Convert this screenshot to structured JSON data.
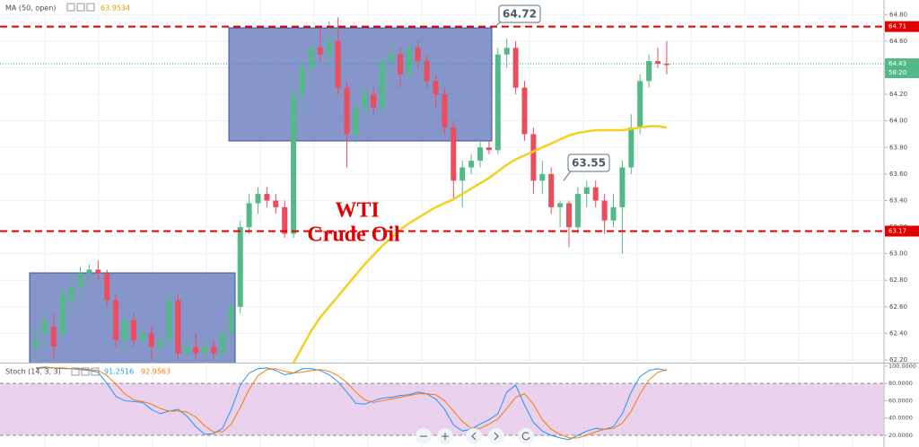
{
  "chart_data": [
    {
      "type": "candlestick",
      "title": "MA (50, open)",
      "ma": {
        "readout": 63.9534,
        "color": "#f5d020",
        "values": [
          null,
          null,
          null,
          null,
          null,
          null,
          null,
          null,
          null,
          null,
          null,
          null,
          null,
          null,
          null,
          null,
          null,
          null,
          null,
          null,
          null,
          null,
          null,
          null,
          null,
          null,
          null,
          null,
          null,
          62.18,
          62.3,
          62.42,
          62.52,
          62.6,
          62.68,
          62.76,
          62.84,
          62.92,
          62.99,
          63.06,
          63.12,
          63.18,
          63.23,
          63.27,
          63.31,
          63.35,
          63.38,
          63.41,
          63.45,
          63.49,
          63.53,
          63.57,
          63.62,
          63.67,
          63.71,
          63.74,
          63.77,
          63.8,
          63.83,
          63.86,
          63.89,
          63.91,
          63.92,
          63.93,
          63.93,
          63.93,
          63.93,
          63.94,
          63.95,
          63.96,
          63.96,
          63.95
        ]
      },
      "up_color": "#53b987",
      "down_color": "#eb4d5c",
      "ohlc": [
        [
          62.3,
          62.45,
          62.2,
          62.35
        ],
        [
          62.4,
          62.55,
          62.3,
          62.5
        ],
        [
          62.45,
          62.55,
          62.2,
          62.3
        ],
        [
          62.4,
          62.75,
          62.35,
          62.7
        ],
        [
          62.65,
          62.85,
          62.5,
          62.75
        ],
        [
          62.75,
          62.9,
          62.6,
          62.85
        ],
        [
          62.85,
          62.92,
          62.75,
          62.88
        ],
        [
          62.88,
          62.95,
          62.8,
          62.85
        ],
        [
          62.85,
          62.88,
          62.6,
          62.65
        ],
        [
          62.65,
          62.7,
          62.3,
          62.35
        ],
        [
          62.35,
          62.55,
          62.25,
          62.5
        ],
        [
          62.5,
          62.55,
          62.3,
          62.35
        ],
        [
          62.35,
          62.45,
          62.3,
          62.4
        ],
        [
          62.4,
          62.45,
          62.2,
          62.3
        ],
        [
          62.3,
          62.4,
          62.2,
          62.35
        ],
        [
          62.35,
          62.7,
          62.3,
          62.65
        ],
        [
          62.65,
          62.7,
          62.2,
          62.25
        ],
        [
          62.25,
          62.35,
          62.2,
          62.3
        ],
        [
          62.3,
          62.4,
          62.2,
          62.25
        ],
        [
          62.25,
          62.35,
          62.2,
          62.3
        ],
        [
          62.3,
          62.35,
          62.2,
          62.25
        ],
        [
          62.25,
          62.45,
          62.2,
          62.4
        ],
        [
          62.4,
          62.65,
          62.3,
          62.6
        ],
        [
          62.6,
          63.25,
          62.55,
          63.2
        ],
        [
          63.2,
          63.45,
          63.15,
          63.38
        ],
        [
          63.38,
          63.5,
          63.3,
          63.45
        ],
        [
          63.45,
          63.5,
          63.35,
          63.4
        ],
        [
          63.4,
          63.45,
          63.3,
          63.35
        ],
        [
          63.35,
          63.4,
          63.12,
          63.15
        ],
        [
          63.15,
          64.25,
          63.12,
          64.2
        ],
        [
          64.2,
          64.45,
          64.1,
          64.4
        ],
        [
          64.4,
          64.6,
          64.35,
          64.55
        ],
        [
          64.55,
          64.7,
          64.45,
          64.5
        ],
        [
          64.5,
          64.75,
          64.4,
          64.6
        ],
        [
          64.6,
          64.78,
          64.2,
          64.25
        ],
        [
          64.25,
          64.3,
          63.65,
          63.9
        ],
        [
          63.9,
          64.15,
          63.85,
          64.1
        ],
        [
          64.1,
          64.3,
          64.0,
          64.2
        ],
        [
          64.2,
          64.25,
          64.05,
          64.1
        ],
        [
          64.1,
          64.5,
          64.05,
          64.45
        ],
        [
          64.45,
          64.6,
          64.35,
          64.5
        ],
        [
          64.5,
          64.55,
          64.25,
          64.35
        ],
        [
          64.35,
          64.6,
          64.3,
          64.55
        ],
        [
          64.55,
          64.6,
          64.4,
          64.45
        ],
        [
          64.45,
          64.5,
          64.25,
          64.3
        ],
        [
          64.3,
          64.35,
          64.1,
          64.2
        ],
        [
          64.2,
          64.25,
          63.9,
          63.95
        ],
        [
          63.95,
          64.0,
          63.4,
          63.55
        ],
        [
          63.55,
          63.7,
          63.35,
          63.65
        ],
        [
          63.65,
          63.75,
          63.6,
          63.7
        ],
        [
          63.7,
          63.85,
          63.65,
          63.8
        ],
        [
          63.8,
          63.85,
          63.75,
          63.78
        ],
        [
          63.78,
          64.55,
          63.75,
          64.5
        ],
        [
          64.5,
          64.62,
          64.4,
          64.55
        ],
        [
          64.55,
          64.6,
          64.2,
          64.25
        ],
        [
          64.25,
          64.3,
          63.85,
          63.9
        ],
        [
          63.9,
          63.95,
          63.45,
          63.55
        ],
        [
          63.55,
          63.7,
          63.45,
          63.6
        ],
        [
          63.6,
          63.65,
          63.3,
          63.35
        ],
        [
          63.35,
          63.4,
          63.2,
          63.38
        ],
        [
          63.38,
          63.4,
          63.05,
          63.2
        ],
        [
          63.2,
          63.5,
          63.15,
          63.45
        ],
        [
          63.45,
          63.55,
          63.35,
          63.5
        ],
        [
          63.5,
          63.55,
          63.35,
          63.4
        ],
        [
          63.4,
          63.45,
          63.15,
          63.25
        ],
        [
          63.25,
          63.45,
          63.2,
          63.35
        ],
        [
          63.35,
          63.7,
          63.0,
          63.65
        ],
        [
          63.65,
          64.05,
          63.6,
          63.95
        ],
        [
          63.95,
          64.35,
          63.9,
          64.3
        ],
        [
          64.3,
          64.5,
          64.25,
          64.45
        ],
        [
          64.45,
          64.55,
          64.4,
          64.43
        ],
        [
          64.43,
          64.6,
          64.35,
          64.42
        ]
      ],
      "ylim": [
        62.18,
        64.91
      ],
      "yticks": [
        {
          "value": 64.8,
          "label": "64.80"
        },
        {
          "value": 64.6,
          "label": "64.60"
        },
        {
          "value": 64.4,
          "label": "64.40"
        },
        {
          "value": 64.2,
          "label": "64.20"
        },
        {
          "value": 64.0,
          "label": "64.00"
        },
        {
          "value": 63.8,
          "label": "63.80"
        },
        {
          "value": 63.6,
          "label": "63.60"
        },
        {
          "value": 63.4,
          "label": "63.40"
        },
        {
          "value": 63.2,
          "label": "63.20"
        },
        {
          "value": 63.0,
          "label": "63.00"
        },
        {
          "value": 62.8,
          "label": "62.80"
        },
        {
          "value": 62.6,
          "label": "62.60"
        },
        {
          "value": 62.4,
          "label": "62.40"
        },
        {
          "value": 62.2,
          "label": "62.20"
        }
      ],
      "grid": true,
      "hlines": [
        64.71,
        63.17
      ],
      "hline_color": "#e10000",
      "callouts": [
        64.72,
        63.55
      ],
      "last_price": 64.43,
      "countdown": "58:20",
      "annotation": [
        "WTI",
        "Crude Oil"
      ]
    },
    {
      "type": "line",
      "title": "Stoch (14, 3, 3)",
      "series": [
        {
          "color": "#2196f3",
          "readout": 91.2516,
          "values": [
            98,
            99,
            98,
            97,
            97,
            96,
            95,
            93,
            80,
            65,
            60,
            59,
            58,
            50,
            45,
            48,
            50,
            42,
            30,
            21,
            22,
            28,
            50,
            78,
            92,
            97,
            98,
            95,
            90,
            92,
            97,
            97,
            95,
            90,
            82,
            70,
            57,
            56,
            60,
            63,
            64,
            66,
            67,
            70,
            68,
            62,
            50,
            32,
            25,
            27,
            33,
            38,
            45,
            70,
            78,
            55,
            35,
            25,
            20,
            17,
            15,
            20,
            25,
            28,
            27,
            30,
            45,
            70,
            88,
            95,
            97,
            95
          ]
        },
        {
          "color": "#f57c00",
          "readout": 92.9563,
          "values": [
            97,
            98,
            98,
            98,
            97,
            97,
            96,
            95,
            89,
            79,
            68,
            61,
            59,
            56,
            51,
            48,
            48,
            47,
            41,
            31,
            24,
            24,
            33,
            52,
            73,
            89,
            96,
            97,
            94,
            92,
            93,
            95,
            96,
            94,
            89,
            81,
            70,
            61,
            58,
            60,
            62,
            64,
            66,
            68,
            68,
            67,
            60,
            48,
            36,
            28,
            28,
            33,
            39,
            51,
            64,
            68,
            56,
            38,
            27,
            21,
            17,
            17,
            20,
            24,
            27,
            28,
            34,
            48,
            68,
            84,
            93,
            96
          ]
        }
      ],
      "band": [
        20,
        80
      ],
      "band_color": "#e1bee7",
      "ylim": [
        6.5,
        103
      ],
      "yticks": [
        {
          "value": 100,
          "label": "100.0000"
        },
        {
          "value": 80,
          "label": "80.0000"
        },
        {
          "value": 60,
          "label": "60.0000"
        },
        {
          "value": 40,
          "label": "40.0000"
        },
        {
          "value": 20,
          "label": "20.0000"
        }
      ]
    }
  ]
}
